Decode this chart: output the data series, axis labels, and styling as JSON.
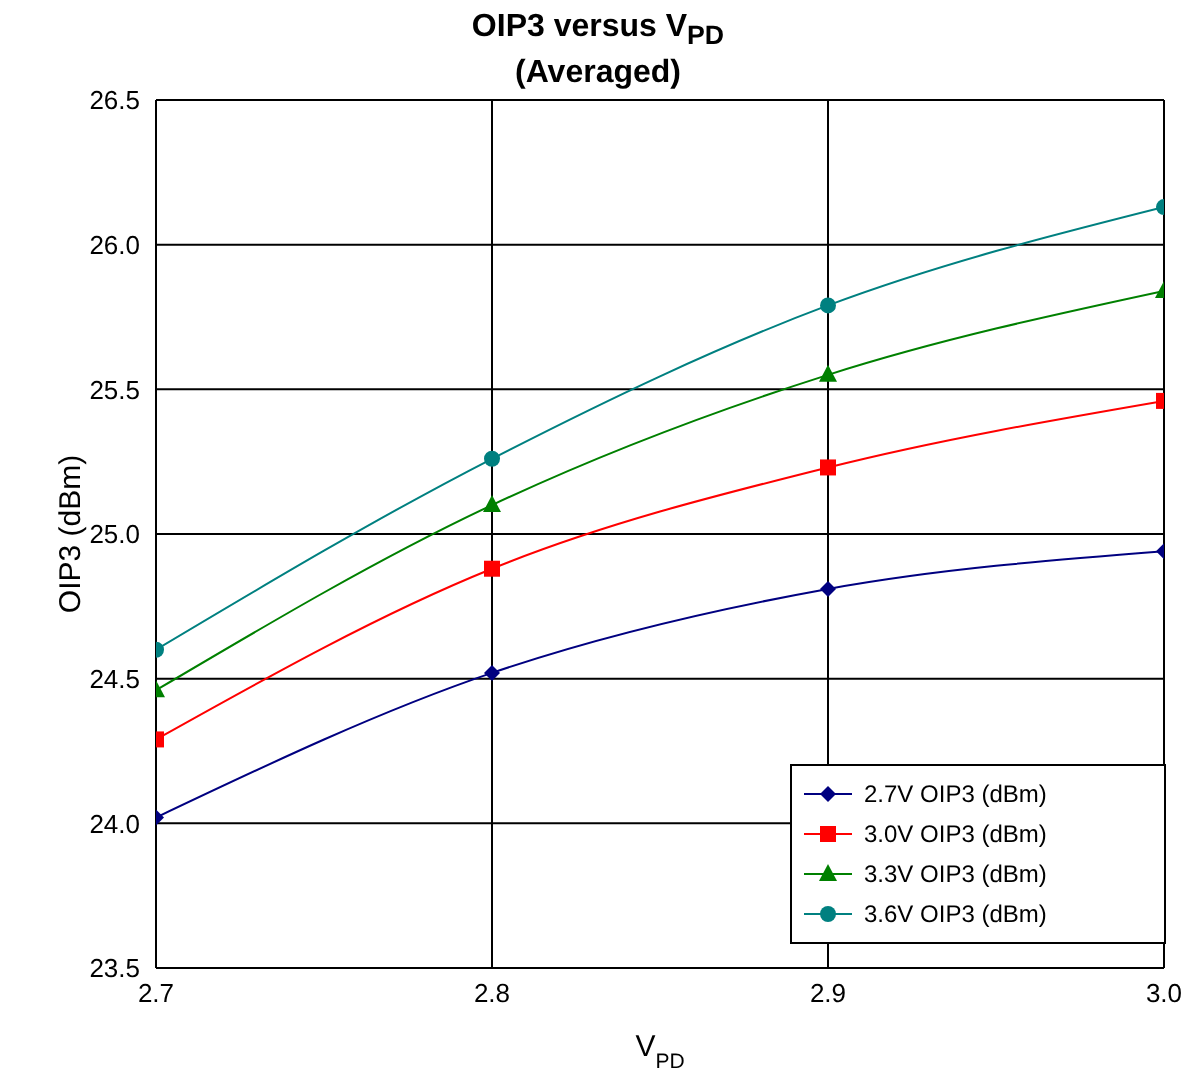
{
  "chart_data": {
    "type": "line",
    "title": "OIP3 versus V$_{PD}$",
    "subtitle": "(Averaged)",
    "xlabel": "V$_{PD}$",
    "ylabel": "OIP3 (dBm)",
    "x": [
      2.7,
      2.8,
      2.9,
      3.0
    ],
    "series": [
      {
        "name": "2.7V OIP3 (dBm)",
        "color": "#000080",
        "marker": "diamond",
        "values": [
          24.02,
          24.52,
          24.81,
          24.94
        ]
      },
      {
        "name": "3.0V OIP3 (dBm)",
        "color": "#ff0000",
        "marker": "square",
        "values": [
          24.29,
          24.88,
          25.23,
          25.46
        ]
      },
      {
        "name": "3.3V OIP3 (dBm)",
        "color": "#008000",
        "marker": "triangle",
        "values": [
          24.46,
          25.1,
          25.55,
          25.84
        ]
      },
      {
        "name": "3.6V OIP3 (dBm)",
        "color": "#008080",
        "marker": "circle",
        "values": [
          24.6,
          25.26,
          25.79,
          26.13
        ]
      }
    ],
    "xlim": [
      2.7,
      3.0
    ],
    "xticks": [
      2.7,
      2.8,
      2.9,
      {
        "value": 3.0,
        "label": "3.0"
      }
    ],
    "ylim": [
      23.5,
      26.5
    ],
    "yticks": [
      23.5,
      {
        "value": 24,
        "label": "24.0"
      },
      24.5,
      {
        "value": 25,
        "label": "25.0"
      },
      25.5,
      {
        "value": 26,
        "label": "26.0"
      },
      26.5
    ],
    "grid": true,
    "legend": "bottom right",
    "line_style": "solid"
  }
}
